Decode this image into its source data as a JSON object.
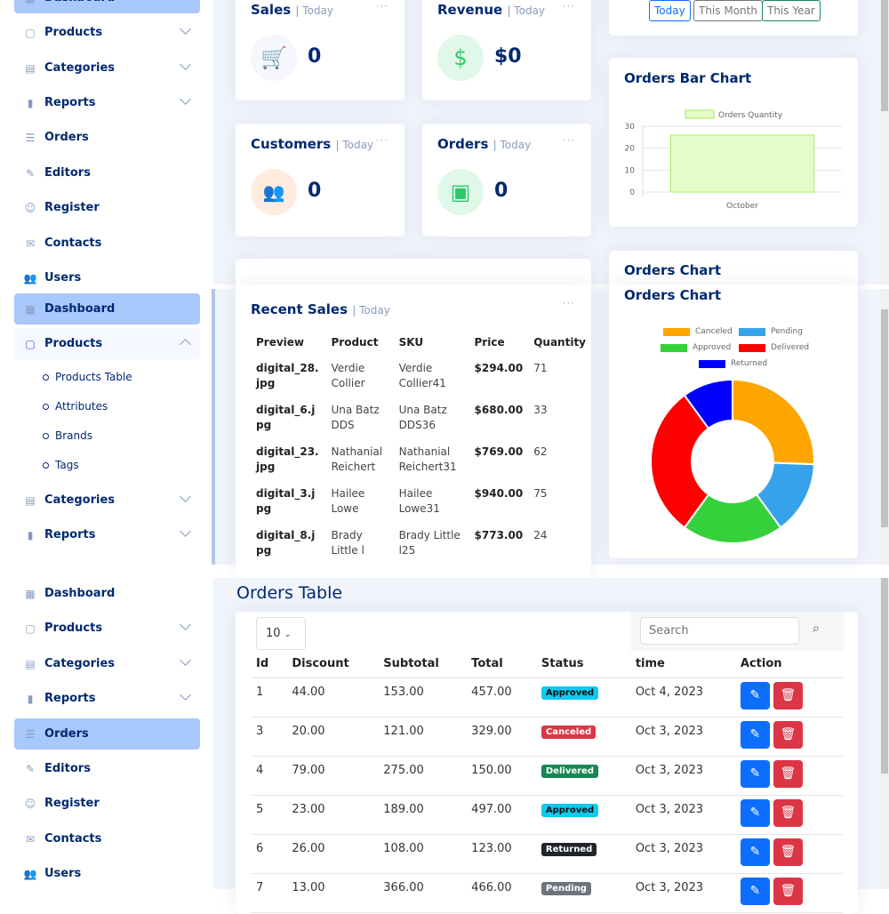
{
  "sidebar": {
    "dashboard": "Dashboard",
    "products": "Products",
    "categories": "Categories",
    "reports": "Reports",
    "orders": "Orders",
    "editors": "Editors",
    "register": "Register",
    "contacts": "Contacts",
    "users": "Users",
    "product_sub": [
      "Products Table",
      "Attributes",
      "Brands",
      "Tags"
    ]
  },
  "cards": {
    "sales": {
      "title": "Sales",
      "period": "| Today",
      "value": "0"
    },
    "revenue": {
      "title": "Revenue",
      "period": "| Today",
      "value": "$0"
    },
    "customers": {
      "title": "Customers",
      "period": "| Today",
      "value": "0"
    },
    "orders": {
      "title": "Orders",
      "period": "| Today",
      "value": "0"
    },
    "more": "···"
  },
  "period_buttons": [
    "Today",
    "This Month",
    "This Year"
  ],
  "bar_chart": {
    "title": "Orders Bar Chart"
  },
  "orders_chart": {
    "title": "Orders Chart"
  },
  "recent_sales": {
    "title": "Recent Sales",
    "period": "| Today",
    "headers": [
      "Preview",
      "Product",
      "SKU",
      "Price",
      "Quantity"
    ],
    "rows": [
      [
        "digital_28.jpg",
        "Verdie Collier",
        "Verdie Collier41",
        "$294.00",
        "71"
      ],
      [
        "digital_6.jpg",
        "Una Batz DDS",
        "Una Batz DDS36",
        "$680.00",
        "33"
      ],
      [
        "digital_23.jpg",
        "Nathanial Reichert",
        "Nathanial Reichert31",
        "$769.00",
        "62"
      ],
      [
        "digital_3.jpg",
        "Hailee Lowe",
        "Hailee Lowe31",
        "$940.00",
        "75"
      ],
      [
        "digital_8.jpg",
        "Brady Little l",
        "Brady Little l25",
        "$773.00",
        "24"
      ]
    ]
  },
  "orders_table": {
    "title": "Orders Table",
    "page_size": "10",
    "search_placeholder": "Search",
    "headers": [
      "Id",
      "Discount",
      "Subtotal",
      "Total",
      "Status",
      "time",
      "Action"
    ],
    "rows": [
      [
        "1",
        "44.00",
        "153.00",
        "457.00",
        "Approved",
        "Oct 4, 2023"
      ],
      [
        "3",
        "20.00",
        "121.00",
        "329.00",
        "Canceled",
        "Oct 3, 2023"
      ],
      [
        "4",
        "79.00",
        "275.00",
        "150.00",
        "Delivered",
        "Oct 3, 2023"
      ],
      [
        "5",
        "23.00",
        "189.00",
        "497.00",
        "Approved",
        "Oct 3, 2023"
      ],
      [
        "6",
        "26.00",
        "108.00",
        "123.00",
        "Returned",
        "Oct 3, 2023"
      ],
      [
        "7",
        "13.00",
        "366.00",
        "466.00",
        "Pending",
        "Oct 3, 2023"
      ]
    ],
    "status_colors": {
      "Approved": "#0dcaf0",
      "Canceled": "#dc3545",
      "Delivered": "#198754",
      "Returned": "#212529",
      "Pending": "#6c757d"
    }
  },
  "chart_data": [
    {
      "type": "bar",
      "title": "Orders Bar Chart",
      "categories": [
        "October"
      ],
      "series": [
        {
          "name": "Orders Quantity",
          "values": [
            26
          ]
        }
      ],
      "ylim": [
        0,
        30
      ],
      "yticks": [
        0,
        10,
        20,
        30
      ],
      "legend": "top",
      "color": "#a6f05a"
    },
    {
      "type": "pie",
      "title": "Orders Chart",
      "labels": [
        "Canceled",
        "Pending",
        "Approved",
        "Delivered",
        "Returned"
      ],
      "values": [
        23,
        13,
        18,
        27,
        9
      ],
      "colors": [
        "#ffa500",
        "#36a2eb",
        "#36d13a",
        "#ff0000",
        "#0000ff"
      ],
      "legend": "top"
    }
  ]
}
